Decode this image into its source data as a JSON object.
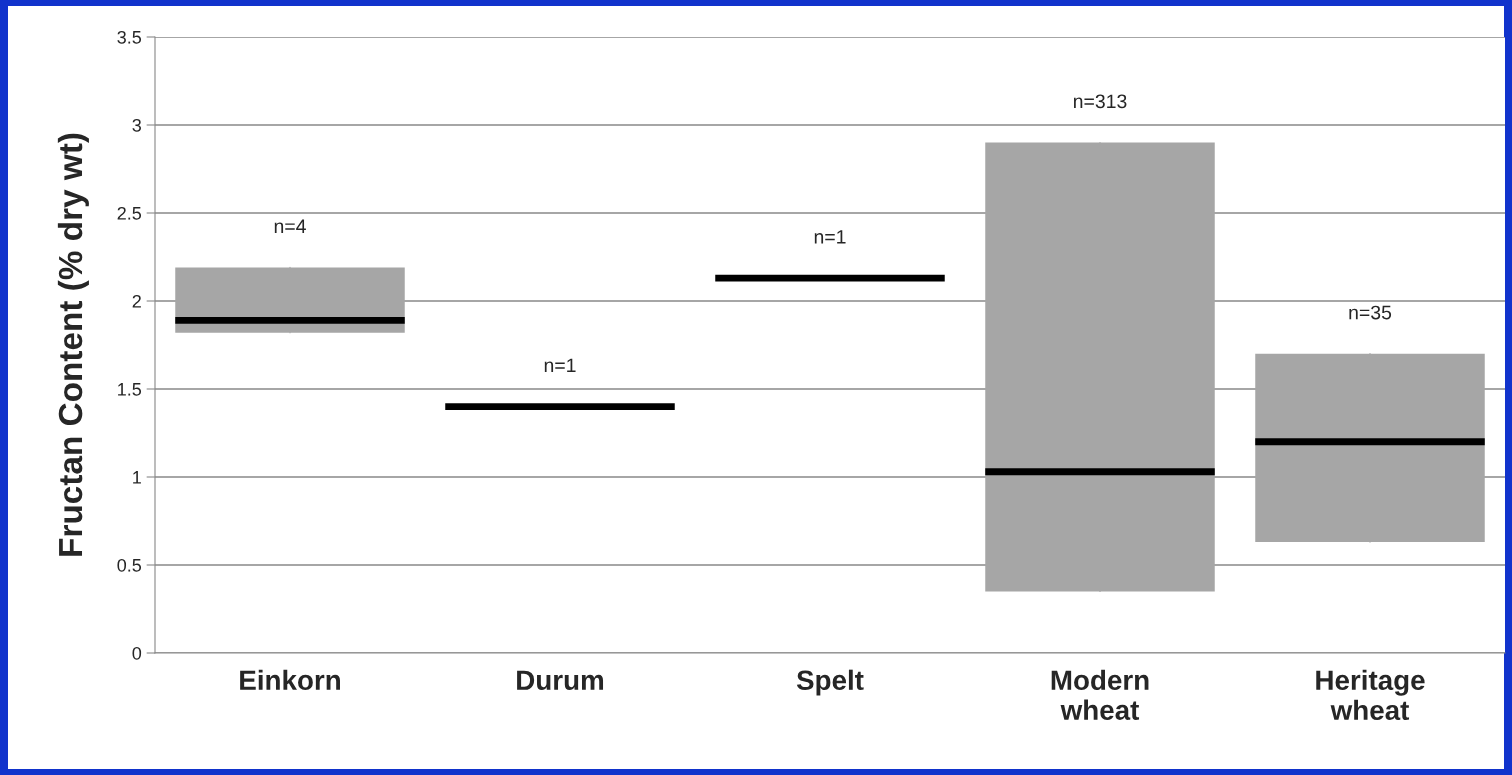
{
  "chart_data": {
    "type": "box",
    "ylabel": "Fructan Content (% dry wt)",
    "categories": [
      "Einkorn",
      "Durum",
      "Spelt",
      "Modern wheat",
      "Heritage wheat"
    ],
    "colors": [
      "#a6a6a6",
      "#000000",
      "#000000",
      "#a6a6a6",
      "#a6a6a6"
    ],
    "boxes": [
      {
        "low": 1.82,
        "q1": 1.82,
        "median": 1.89,
        "q3": 2.19,
        "high": 2.19
      },
      {
        "low": 1.4,
        "q1": 1.4,
        "median": 1.4,
        "q3": 1.4,
        "high": 1.4
      },
      {
        "low": 2.13,
        "q1": 2.13,
        "median": 2.13,
        "q3": 2.13,
        "high": 2.13
      },
      {
        "low": 0.35,
        "q1": 0.35,
        "median": 1.03,
        "q3": 2.9,
        "high": 2.9
      },
      {
        "low": 0.63,
        "q1": 0.63,
        "median": 1.2,
        "q3": 1.7,
        "high": 1.7
      }
    ],
    "ylim": [
      0,
      3.5
    ],
    "yticks": [
      0,
      0.5,
      1,
      1.5,
      2,
      2.5,
      3,
      3.5
    ],
    "grid": "y",
    "annotations": [
      {
        "text": "n=4",
        "x": "Einkorn",
        "y": 2.19
      },
      {
        "text": "n=1",
        "x": "Durum",
        "y": 1.4
      },
      {
        "text": "n=1",
        "x": "Spelt",
        "y": 2.13
      },
      {
        "text": "n=313",
        "x": "Modern wheat",
        "y": 2.9
      },
      {
        "text": "n=35",
        "x": "Heritage wheat",
        "y": 1.7
      }
    ]
  }
}
